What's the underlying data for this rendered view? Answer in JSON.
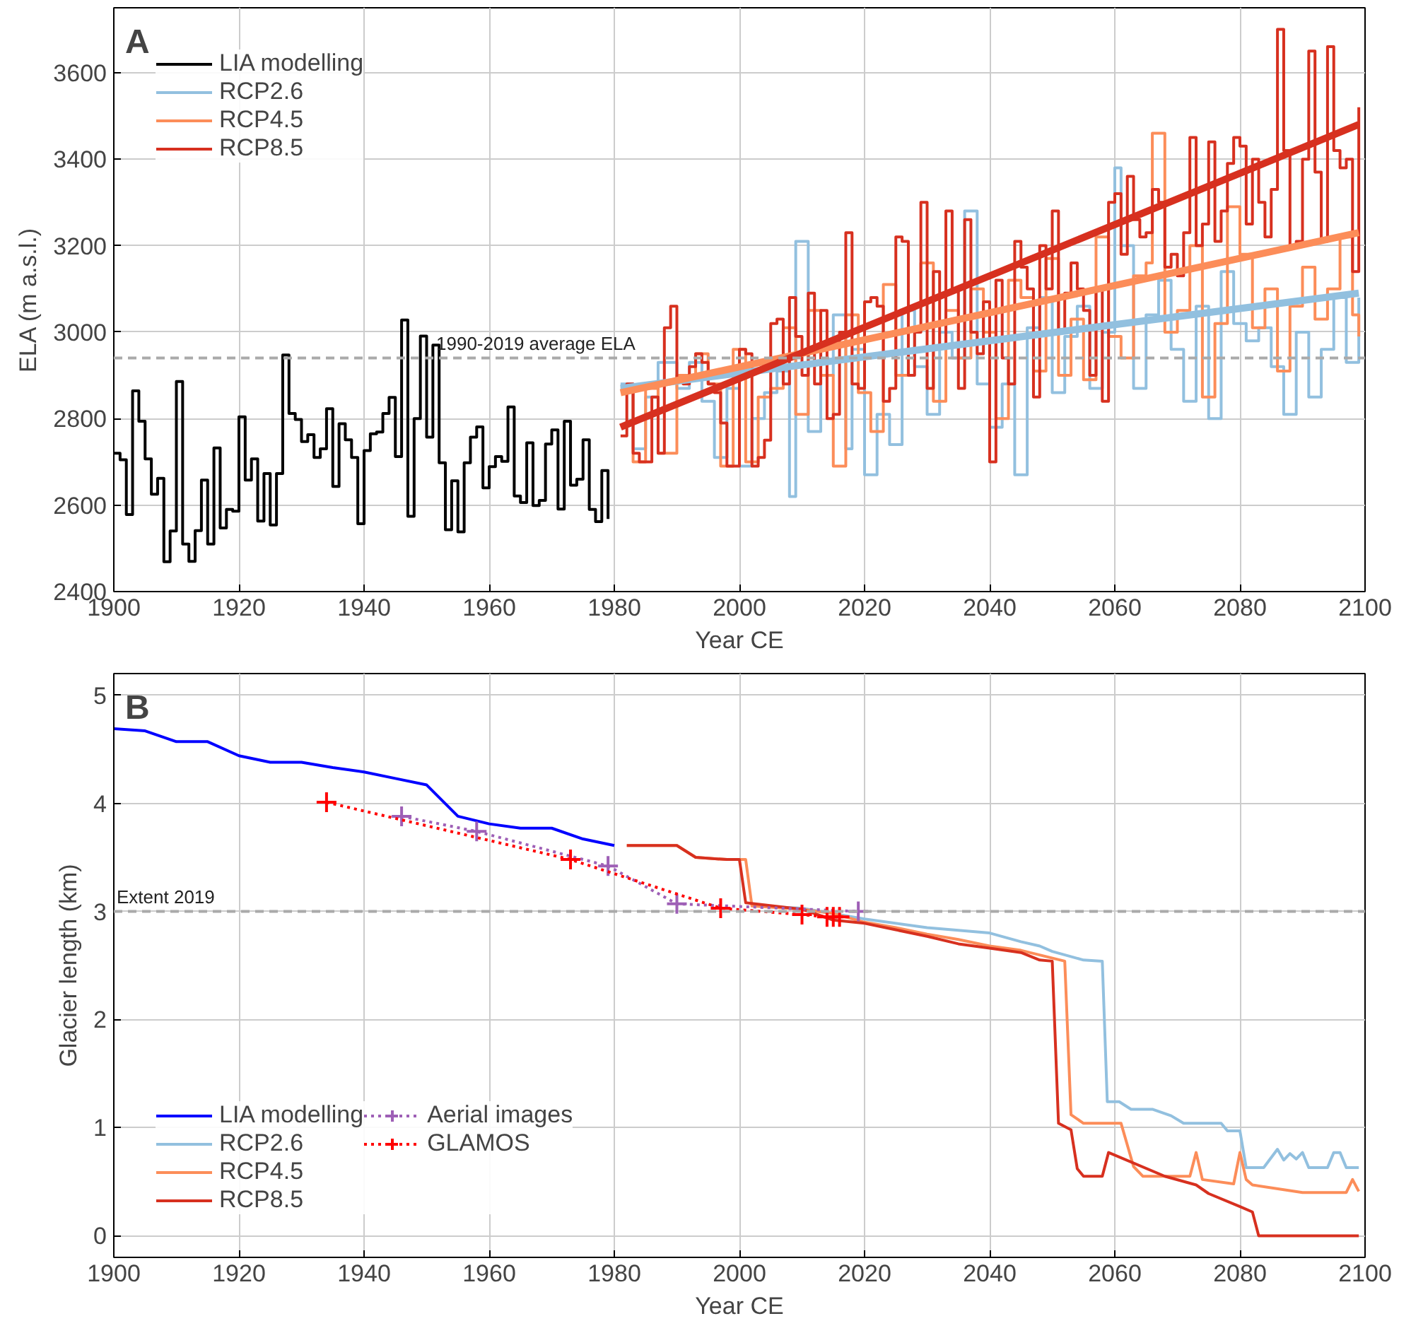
{
  "chart_data": [
    {
      "type": "step",
      "xlabel": "Year CE",
      "ylabel": "ELA (m a.s.l.)",
      "annotations": [
        "A"
      ],
      "xlim": [
        1900,
        2100
      ],
      "xticks": [
        1900,
        1920,
        1940,
        1960,
        1980,
        2000,
        2020,
        2040,
        2060,
        2080,
        2100
      ],
      "ylim": [
        2400,
        3750
      ],
      "yticks": [
        2400,
        2600,
        2800,
        3000,
        3200,
        3400,
        3600
      ],
      "grid": true,
      "legend": "top left",
      "ref_lines": [
        {
          "axis": "y",
          "value": 2940,
          "label": "1990-2019 average ELA",
          "color": "#aaaaaa",
          "line_style": "dashed"
        }
      ],
      "series": [
        {
          "name": "LIA modelling",
          "color": "#000000",
          "x": [
            1900,
            1901,
            1902,
            1903,
            1904,
            1905,
            1906,
            1907,
            1908,
            1909,
            1910,
            1911,
            1912,
            1913,
            1914,
            1915,
            1916,
            1917,
            1918,
            1919,
            1920,
            1921,
            1922,
            1923,
            1924,
            1925,
            1926,
            1927,
            1928,
            1929,
            1930,
            1931,
            1932,
            1933,
            1934,
            1935,
            1936,
            1937,
            1938,
            1939,
            1940,
            1941,
            1942,
            1943,
            1944,
            1945,
            1946,
            1947,
            1948,
            1949,
            1950,
            1951,
            1952,
            1953,
            1954,
            1955,
            1956,
            1957,
            1958,
            1959,
            1960,
            1961,
            1962,
            1963,
            1964,
            1965,
            1966,
            1967,
            1968,
            1969,
            1970,
            1971,
            1972,
            1973,
            1974,
            1975,
            1976,
            1977,
            1978,
            1979
          ],
          "values": [
            2720,
            2705,
            2578,
            2864,
            2794,
            2707,
            2625,
            2662,
            2469,
            2540,
            2886,
            2510,
            2470,
            2541,
            2658,
            2510,
            2732,
            2547,
            2590,
            2586,
            2804,
            2658,
            2707,
            2563,
            2673,
            2554,
            2673,
            2947,
            2812,
            2798,
            2747,
            2763,
            2710,
            2730,
            2823,
            2643,
            2788,
            2751,
            2710,
            2557,
            2726,
            2765,
            2769,
            2812,
            2849,
            2712,
            3028,
            2574,
            2800,
            2991,
            2757,
            2970,
            2698,
            2543,
            2656,
            2538,
            2698,
            2757,
            2781,
            2640,
            2689,
            2712,
            2701,
            2827,
            2621,
            2606,
            2744,
            2599,
            2611,
            2741,
            2774,
            2591,
            2794,
            2646,
            2660,
            2751,
            2590,
            2562,
            2680,
            2568
          ]
        },
        {
          "name": "RCP2.6",
          "color": "#92c0df",
          "x": [
            1981,
            1983,
            1985,
            1987,
            1990,
            1992,
            1994,
            1996,
            1998,
            2000,
            2002,
            2004,
            2006,
            2008,
            2009,
            2011,
            2013,
            2015,
            2017,
            2018,
            2020,
            2022,
            2024,
            2026,
            2028,
            2030,
            2032,
            2034,
            2036,
            2038,
            2040,
            2042,
            2044,
            2046,
            2048,
            2050,
            2052,
            2054,
            2056,
            2058,
            2060,
            2061,
            2063,
            2065,
            2067,
            2069,
            2071,
            2073,
            2075,
            2077,
            2079,
            2081,
            2083,
            2085,
            2087,
            2089,
            2091,
            2093,
            2095,
            2097,
            2099
          ],
          "values": [
            2880,
            2730,
            2850,
            2930,
            2870,
            2930,
            2840,
            2710,
            2870,
            2690,
            2800,
            2860,
            2910,
            2620,
            3210,
            2770,
            2900,
            3040,
            2730,
            2960,
            2670,
            2810,
            2740,
            3050,
            2920,
            2810,
            3000,
            2940,
            3280,
            2880,
            2780,
            2880,
            2670,
            3010,
            3080,
            2860,
            2990,
            3060,
            2870,
            3000,
            3380,
            3200,
            2870,
            3040,
            3120,
            2960,
            2840,
            3060,
            2800,
            3140,
            3020,
            2980,
            3010,
            2920,
            2810,
            3000,
            2850,
            2960,
            3080,
            2930,
            3080
          ]
        },
        {
          "name": "RCP4.5",
          "color": "#fc8d59",
          "x": [
            1981,
            1983,
            1985,
            1987,
            1990,
            1993,
            1995,
            1997,
            1999,
            2001,
            2003,
            2005,
            2007,
            2009,
            2011,
            2013,
            2015,
            2017,
            2019,
            2021,
            2023,
            2025,
            2027,
            2029,
            2031,
            2033,
            2035,
            2037,
            2039,
            2041,
            2043,
            2045,
            2047,
            2049,
            2051,
            2053,
            2055,
            2057,
            2059,
            2061,
            2063,
            2065,
            2066,
            2068,
            2070,
            2072,
            2074,
            2076,
            2078,
            2080,
            2082,
            2084,
            2086,
            2088,
            2090,
            2092,
            2094,
            2096,
            2098,
            2099
          ],
          "values": [
            2870,
            2700,
            2870,
            2720,
            2900,
            2950,
            2880,
            2690,
            2960,
            2700,
            2850,
            2870,
            3010,
            2810,
            3050,
            2900,
            2690,
            3040,
            2860,
            2770,
            3110,
            2900,
            3060,
            3160,
            2840,
            3050,
            2940,
            3100,
            3000,
            2800,
            3120,
            3080,
            2910,
            3170,
            2900,
            3030,
            2890,
            3220,
            2990,
            2940,
            3130,
            3160,
            3460,
            3000,
            3050,
            3200,
            2850,
            3020,
            3290,
            3180,
            3010,
            3100,
            2910,
            3060,
            3150,
            3030,
            3100,
            3220,
            3040,
            2990
          ]
        },
        {
          "name": "RCP8.5",
          "color": "#d7301f",
          "x": [
            1981,
            1982,
            1983,
            1984,
            1986,
            1987,
            1988,
            1989,
            1990,
            1991,
            1992,
            1993,
            1994,
            1995,
            1996,
            1997,
            1998,
            2000,
            2001,
            2002,
            2003,
            2004,
            2005,
            2006,
            2007,
            2008,
            2009,
            2010,
            2011,
            2012,
            2013,
            2014,
            2015,
            2016,
            2017,
            2018,
            2019,
            2020,
            2021,
            2022,
            2023,
            2024,
            2025,
            2026,
            2027,
            2028,
            2029,
            2030,
            2031,
            2032,
            2033,
            2034,
            2035,
            2036,
            2037,
            2038,
            2039,
            2040,
            2041,
            2042,
            2043,
            2044,
            2045,
            2046,
            2047,
            2048,
            2049,
            2050,
            2051,
            2052,
            2053,
            2054,
            2055,
            2056,
            2057,
            2058,
            2059,
            2060,
            2061,
            2062,
            2063,
            2064,
            2065,
            2066,
            2067,
            2068,
            2069,
            2070,
            2071,
            2072,
            2073,
            2074,
            2075,
            2076,
            2077,
            2078,
            2079,
            2080,
            2081,
            2082,
            2083,
            2084,
            2085,
            2086,
            2087,
            2088,
            2089,
            2090,
            2091,
            2092,
            2093,
            2094,
            2095,
            2096,
            2097,
            2098,
            2099
          ],
          "values": [
            2760,
            2880,
            2720,
            2700,
            2850,
            2720,
            3010,
            3060,
            2890,
            2880,
            2920,
            2950,
            2930,
            2880,
            2860,
            2790,
            2690,
            2960,
            2950,
            2690,
            2710,
            2750,
            3020,
            3030,
            2880,
            3080,
            2990,
            2900,
            3090,
            2880,
            3050,
            2800,
            2810,
            3000,
            3230,
            2880,
            2870,
            3070,
            3080,
            3060,
            2840,
            2870,
            3220,
            3210,
            2900,
            3000,
            3300,
            2870,
            3140,
            2970,
            3280,
            3100,
            2870,
            3260,
            3000,
            2950,
            3070,
            2700,
            3120,
            2940,
            2880,
            3210,
            3150,
            3100,
            2850,
            3200,
            3100,
            3280,
            3000,
            3090,
            3160,
            3100,
            3050,
            2900,
            3100,
            2840,
            3300,
            3320,
            3180,
            3360,
            3260,
            3220,
            3230,
            3330,
            3300,
            3150,
            3180,
            3130,
            3230,
            3450,
            3200,
            3250,
            3440,
            3210,
            3280,
            3390,
            3450,
            3430,
            3250,
            3400,
            3300,
            3220,
            3330,
            3700,
            3420,
            3200,
            3210,
            3400,
            3650,
            3370,
            3210,
            3660,
            3420,
            3380,
            3400,
            3140,
            3520
          ]
        },
        {
          "type": "line",
          "color": "#92c0df",
          "x": [
            1981,
            2099
          ],
          "values": [
            2870,
            3090
          ]
        },
        {
          "type": "line",
          "color": "#fc8d59",
          "x": [
            1981,
            2099
          ],
          "values": [
            2860,
            3230
          ]
        },
        {
          "type": "line",
          "color": "#d7301f",
          "x": [
            1981,
            2099
          ],
          "values": [
            2780,
            3480
          ]
        }
      ]
    },
    {
      "type": "line",
      "xlabel": "Year CE",
      "ylabel": "Glacier length (km)",
      "annotations": [
        "B"
      ],
      "xlim": [
        1900,
        2100
      ],
      "xticks": [
        1900,
        1920,
        1940,
        1960,
        1980,
        2000,
        2020,
        2040,
        2060,
        2080,
        2100
      ],
      "ylim": [
        -0.2,
        5.2
      ],
      "yticks": [
        0,
        1,
        2,
        3,
        4,
        5
      ],
      "grid": true,
      "legend": "bottom left",
      "ref_lines": [
        {
          "axis": "y",
          "value": 3.0,
          "label": "Extent 2019",
          "color": "#aaaaaa",
          "line_style": "dashed"
        }
      ],
      "series": [
        {
          "name": "LIA modelling",
          "color": "#0000ff",
          "x": [
            1900,
            1905,
            1910,
            1915,
            1920,
            1925,
            1930,
            1935,
            1940,
            1945,
            1950,
            1955,
            1960,
            1965,
            1970,
            1975,
            1980
          ],
          "values": [
            4.69,
            4.67,
            4.57,
            4.57,
            4.44,
            4.38,
            4.38,
            4.33,
            4.29,
            4.23,
            4.17,
            3.88,
            3.81,
            3.77,
            3.77,
            3.67,
            3.61
          ]
        },
        {
          "name": "RCP2.6",
          "color": "#92c0df",
          "x": [
            2002,
            2010,
            2020,
            2030,
            2040,
            2045,
            2048,
            2050,
            2055,
            2058,
            2058.8,
            2060.7,
            2062.6,
            2066,
            2069,
            2071,
            2077,
            2078,
            2080,
            2081,
            2083.8,
            2086,
            2087,
            2088,
            2089,
            2090,
            2091,
            2094,
            2095,
            2096,
            2097,
            2099
          ],
          "values": [
            3.05,
            3.03,
            2.93,
            2.85,
            2.8,
            2.72,
            2.68,
            2.63,
            2.55,
            2.54,
            1.24,
            1.24,
            1.17,
            1.17,
            1.11,
            1.04,
            1.04,
            0.97,
            0.97,
            0.63,
            0.63,
            0.8,
            0.7,
            0.76,
            0.71,
            0.77,
            0.63,
            0.63,
            0.77,
            0.77,
            0.63,
            0.63
          ]
        },
        {
          "name": "RCP4.5",
          "color": "#fc8d59",
          "x": [
            1982,
            1990,
            1993,
            1998,
            2001,
            2002,
            2010,
            2015,
            2020,
            2025,
            2030,
            2035,
            2040,
            2045,
            2052,
            2053,
            2055,
            2061,
            2063,
            2064.5,
            2072,
            2073,
            2074,
            2079,
            2080,
            2081,
            2082,
            2090,
            2097,
            2098,
            2099
          ],
          "values": [
            3.61,
            3.61,
            3.5,
            3.48,
            3.48,
            3.05,
            3.02,
            2.98,
            2.9,
            2.85,
            2.79,
            2.74,
            2.68,
            2.64,
            2.54,
            1.12,
            1.04,
            1.04,
            0.64,
            0.55,
            0.55,
            0.77,
            0.52,
            0.48,
            0.77,
            0.52,
            0.47,
            0.4,
            0.4,
            0.52,
            0.41
          ]
        },
        {
          "name": "RCP8.5",
          "color": "#d7301f",
          "x": [
            1982,
            1990,
            1993,
            1998,
            2000,
            2001,
            2010,
            2015,
            2020,
            2025,
            2030,
            2035,
            2040,
            2045,
            2048,
            2050,
            2051,
            2053,
            2054,
            2055,
            2058,
            2059,
            2068,
            2073,
            2075,
            2080,
            2082,
            2083,
            2099
          ],
          "values": [
            3.61,
            3.61,
            3.5,
            3.48,
            3.48,
            3.08,
            3.02,
            2.92,
            2.89,
            2.83,
            2.77,
            2.7,
            2.66,
            2.62,
            2.55,
            2.54,
            1.04,
            0.98,
            0.62,
            0.55,
            0.55,
            0.77,
            0.55,
            0.47,
            0.39,
            0.27,
            0.22,
            0,
            0
          ]
        },
        {
          "name": "Aerial images",
          "color": "#9e5fb6",
          "marker": "cross",
          "line_style": "dotted",
          "x": [
            1946,
            1958,
            1979,
            1990,
            2019
          ],
          "values": [
            3.88,
            3.74,
            3.42,
            3.07,
            3.0
          ]
        },
        {
          "name": "GLAMOS",
          "color": "#ff0000",
          "marker": "cross",
          "line_style": "dotted",
          "x": [
            1934,
            1973,
            1997,
            2010,
            2014,
            2015,
            2016
          ],
          "values": [
            4.01,
            3.48,
            3.03,
            2.97,
            2.95,
            2.95,
            2.95
          ]
        }
      ]
    }
  ]
}
